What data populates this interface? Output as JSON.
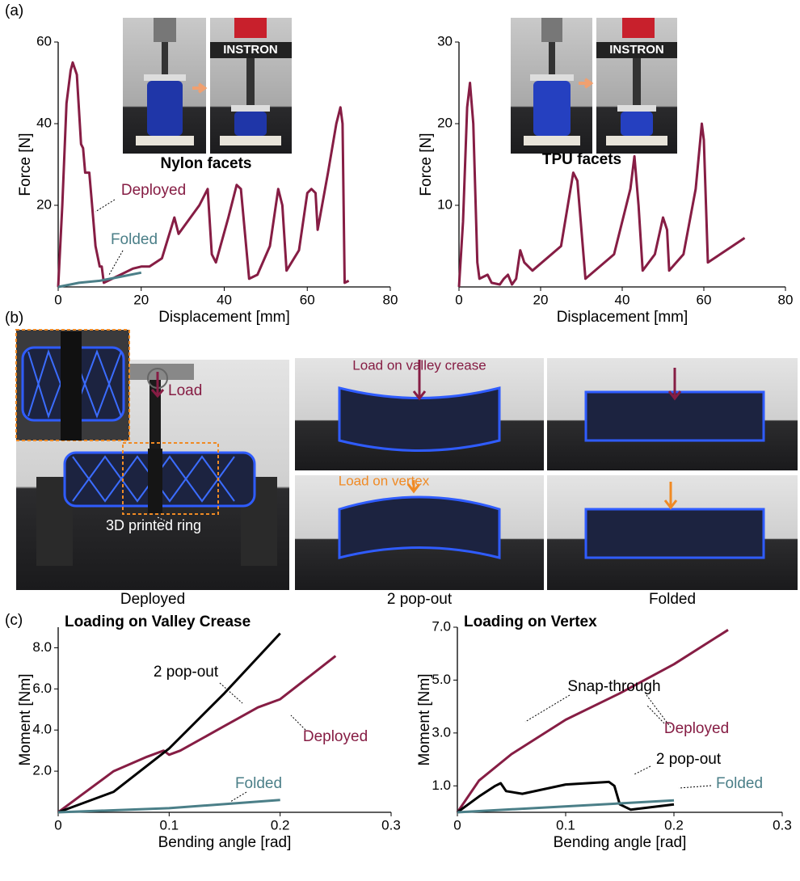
{
  "panel_labels": [
    "(a)",
    "(b)",
    "(c)"
  ],
  "photos": {
    "instron": "INSTRON",
    "nylon": "Nylon facets",
    "tpu": "TPU facets",
    "load": "Load",
    "ring": "3D printed ring",
    "load_valley": "Load on valley crease",
    "load_vertex": "Load on vertex",
    "captions": [
      "Deployed",
      "2 pop-out",
      "Folded"
    ]
  },
  "chart_data": [
    {
      "type": "line",
      "x_label": "Displacement [mm]",
      "y_label": "Force [N]",
      "xlim": [
        0,
        80
      ],
      "xticks": [
        0,
        20,
        40,
        60,
        80
      ],
      "ylim": [
        0,
        60
      ],
      "yticks": [
        20,
        40,
        60
      ],
      "series": [
        {
          "name": "Deployed",
          "color": "#861d44",
          "x": [
            0,
            1,
            2,
            3,
            3.5,
            4.5,
            5.5,
            6,
            6.5,
            7.5,
            8,
            9,
            10,
            10.5,
            11,
            13,
            15,
            18,
            20,
            22,
            25,
            28,
            29,
            34,
            36,
            37,
            38,
            41,
            43,
            44,
            46,
            48,
            51,
            53,
            54,
            55,
            58,
            60,
            61,
            62,
            62.5,
            65,
            67,
            68,
            68.5,
            69,
            70
          ],
          "values": [
            0,
            20,
            45,
            53,
            55,
            52,
            35,
            34,
            28,
            28,
            22,
            10,
            5,
            5,
            1,
            2,
            3,
            4.5,
            5,
            5,
            7,
            17,
            13,
            20,
            24,
            8,
            6,
            17,
            25,
            24,
            2,
            3,
            10,
            24,
            20,
            4,
            9,
            23,
            24,
            23,
            14,
            28,
            40,
            44,
            40,
            1,
            1.5
          ]
        },
        {
          "name": "Folded",
          "color": "#4b7f88",
          "x": [
            0,
            5,
            10,
            15,
            20
          ],
          "values": [
            0,
            1,
            1.5,
            2.5,
            3.5
          ]
        }
      ]
    },
    {
      "type": "line",
      "x_label": "Displacement [mm]",
      "y_label": "Force [N]",
      "xlim": [
        0,
        80
      ],
      "xticks": [
        0,
        20,
        40,
        60,
        80
      ],
      "ylim": [
        0,
        30
      ],
      "yticks": [
        10,
        20,
        30
      ],
      "series": [
        {
          "name": "Deployed",
          "color": "#861d44",
          "x": [
            0,
            1,
            2,
            2.7,
            3.5,
            4.5,
            5,
            7,
            8,
            10,
            11,
            12,
            13,
            14,
            15,
            16,
            18,
            25,
            28,
            29,
            31,
            38,
            42,
            43,
            44,
            45,
            48,
            50,
            51,
            51.5,
            55,
            58,
            59.5,
            60,
            61,
            67,
            70
          ],
          "values": [
            0,
            8,
            22,
            25,
            20,
            3,
            1,
            1.5,
            0.5,
            0.3,
            1,
            1.5,
            0.3,
            1,
            4.5,
            3,
            2,
            5,
            14,
            13,
            1,
            4,
            12,
            16,
            10,
            2,
            4,
            8.5,
            7,
            2,
            4,
            12,
            20,
            18,
            3,
            5,
            6
          ]
        }
      ]
    },
    {
      "type": "line",
      "title": "Loading on Valley Crease",
      "x_label": "Bending angle [rad]",
      "y_label": "Moment [Nm]",
      "xlim": [
        0,
        0.3
      ],
      "xticks": [
        0,
        0.1,
        0.2,
        0.3
      ],
      "ylim": [
        0,
        9
      ],
      "yticks": [
        {
          "value": 2,
          "label": "2.0"
        },
        {
          "value": 4,
          "label": "4.0"
        },
        {
          "value": 6,
          "label": "6.0"
        },
        {
          "value": 8,
          "label": "8.0"
        }
      ],
      "series": [
        {
          "name": "Deployed",
          "color": "#861d44",
          "x": [
            0,
            0.02,
            0.05,
            0.08,
            0.095,
            0.1,
            0.11,
            0.15,
            0.18,
            0.2,
            0.25
          ],
          "values": [
            0,
            0.8,
            2.0,
            2.7,
            3.0,
            2.8,
            3.0,
            4.2,
            5.1,
            5.5,
            7.6
          ]
        },
        {
          "name": "2 pop-out",
          "color": "#000000",
          "x": [
            0,
            0.05,
            0.1,
            0.15,
            0.2
          ],
          "values": [
            0,
            1.0,
            3.1,
            5.8,
            8.7
          ]
        },
        {
          "name": "Folded",
          "color": "#4b7f88",
          "x": [
            0,
            0.1,
            0.2
          ],
          "values": [
            0,
            0.2,
            0.6
          ]
        }
      ]
    },
    {
      "type": "line",
      "title": "Loading on Vertex",
      "x_label": "Bending angle [rad]",
      "y_label": "Moment [Nm]",
      "xlim": [
        0,
        0.3
      ],
      "xticks": [
        0,
        0.1,
        0.2,
        0.3
      ],
      "ylim": [
        0,
        7
      ],
      "yticks": [
        {
          "value": 1,
          "label": "1.0"
        },
        {
          "value": 3,
          "label": "3.0"
        },
        {
          "value": 5,
          "label": "5.0"
        },
        {
          "value": 7,
          "label": "7.0"
        }
      ],
      "annotations": [
        "Snap-through"
      ],
      "series": [
        {
          "name": "Deployed",
          "color": "#861d44",
          "x": [
            0,
            0.02,
            0.05,
            0.1,
            0.15,
            0.2,
            0.25
          ],
          "values": [
            0,
            1.2,
            2.2,
            3.5,
            4.5,
            5.6,
            6.9
          ]
        },
        {
          "name": "2 pop-out",
          "color": "#000000",
          "x": [
            0,
            0.02,
            0.035,
            0.04,
            0.045,
            0.06,
            0.1,
            0.14,
            0.145,
            0.15,
            0.16,
            0.2
          ],
          "values": [
            0,
            0.6,
            1.0,
            1.1,
            0.8,
            0.7,
            1.05,
            1.15,
            1.0,
            0.3,
            0.1,
            0.3
          ]
        },
        {
          "name": "Folded",
          "color": "#4b7f88",
          "x": [
            0,
            0.2
          ],
          "values": [
            0,
            0.45
          ]
        }
      ]
    }
  ]
}
